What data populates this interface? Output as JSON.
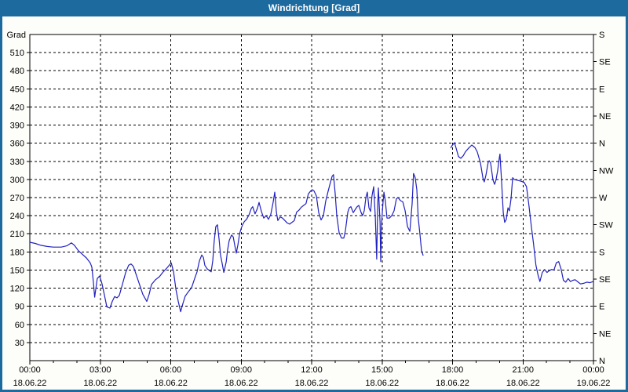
{
  "window": {
    "title": "Windrichtung [Grad]"
  },
  "colors": {
    "titlebar_bg": "#1c6a9e",
    "titlebar_text": "#ffffff",
    "outer_border": "#1c6a9e",
    "page_bg": "#fdfdfa",
    "plot_bg": "#ffffff",
    "grid": "#000000",
    "axis": "#000000",
    "label_text": "#000000",
    "line": "#2020c0"
  },
  "chart_data": {
    "type": "line",
    "title": "Windrichtung [Grad]",
    "ylabel_left": "Grad",
    "grid": "dashed",
    "legend_position": "none",
    "ylim": [
      0,
      540
    ],
    "xlim_hours": [
      0,
      24
    ],
    "y_left_tick_step": 30,
    "y_left_ticks": [
      30,
      60,
      90,
      120,
      150,
      180,
      210,
      240,
      270,
      300,
      330,
      360,
      390,
      420,
      450,
      480,
      510
    ],
    "y_right_ticks": [
      {
        "deg": 540,
        "label": "S"
      },
      {
        "deg": 495,
        "label": "SE"
      },
      {
        "deg": 450,
        "label": "E"
      },
      {
        "deg": 405,
        "label": "NE"
      },
      {
        "deg": 360,
        "label": "N"
      },
      {
        "deg": 315,
        "label": "NW"
      },
      {
        "deg": 270,
        "label": "W"
      },
      {
        "deg": 225,
        "label": "SW"
      },
      {
        "deg": 180,
        "label": "S"
      },
      {
        "deg": 135,
        "label": "SE"
      },
      {
        "deg": 90,
        "label": "E"
      },
      {
        "deg": 45,
        "label": "NE"
      },
      {
        "deg": 0,
        "label": "N"
      }
    ],
    "x_major_ticks": [
      {
        "hour": 0,
        "time": "00:00",
        "date": "18.06.22"
      },
      {
        "hour": 3,
        "time": "03:00",
        "date": "18.06.22"
      },
      {
        "hour": 6,
        "time": "06:00",
        "date": "18.06.22"
      },
      {
        "hour": 9,
        "time": "09:00",
        "date": "18.06.22"
      },
      {
        "hour": 12,
        "time": "12:00",
        "date": "18.06.22"
      },
      {
        "hour": 15,
        "time": "15:00",
        "date": "18.06.22"
      },
      {
        "hour": 18,
        "time": "18:00",
        "date": "18.06.22"
      },
      {
        "hour": 21,
        "time": "21:00",
        "date": "18.06.22"
      },
      {
        "hour": 24,
        "time": "00:00",
        "date": "19.06.22"
      }
    ],
    "x_minor_tick_interval_hours": 1,
    "series": [
      {
        "name": "Windrichtung",
        "unit": "Grad",
        "color": "#2020c0",
        "segments": [
          [
            [
              0.0,
              196
            ],
            [
              0.23,
              194
            ],
            [
              0.47,
              191
            ],
            [
              0.74,
              189
            ],
            [
              1.0,
              188
            ],
            [
              1.34,
              188
            ],
            [
              1.57,
              190
            ],
            [
              1.77,
              195
            ],
            [
              1.9,
              191
            ],
            [
              2.07,
              182
            ],
            [
              2.24,
              176
            ],
            [
              2.41,
              170
            ],
            [
              2.57,
              162
            ],
            [
              2.64,
              155
            ],
            [
              2.71,
              128
            ],
            [
              2.76,
              105
            ],
            [
              2.87,
              136
            ],
            [
              2.97,
              140
            ],
            [
              3.07,
              128
            ],
            [
              3.18,
              108
            ],
            [
              3.28,
              89
            ],
            [
              3.41,
              87
            ],
            [
              3.51,
              98
            ],
            [
              3.61,
              106
            ],
            [
              3.71,
              104
            ],
            [
              3.81,
              108
            ],
            [
              3.94,
              126
            ],
            [
              4.08,
              146
            ],
            [
              4.21,
              158
            ],
            [
              4.31,
              160
            ],
            [
              4.41,
              156
            ],
            [
              4.55,
              140
            ],
            [
              4.68,
              125
            ],
            [
              4.81,
              110
            ],
            [
              4.98,
              98
            ],
            [
              5.08,
              110
            ],
            [
              5.18,
              126
            ],
            [
              5.35,
              134
            ],
            [
              5.52,
              139
            ],
            [
              5.68,
              147
            ],
            [
              5.85,
              154
            ],
            [
              6.02,
              162
            ],
            [
              6.12,
              147
            ],
            [
              6.22,
              118
            ],
            [
              6.32,
              98
            ],
            [
              6.42,
              81
            ],
            [
              6.52,
              95
            ],
            [
              6.62,
              107
            ],
            [
              6.75,
              114
            ],
            [
              6.89,
              121
            ],
            [
              7.02,
              136
            ],
            [
              7.12,
              147
            ],
            [
              7.22,
              165
            ],
            [
              7.32,
              175
            ],
            [
              7.39,
              171
            ],
            [
              7.45,
              158
            ],
            [
              7.55,
              152
            ],
            [
              7.65,
              149
            ],
            [
              7.72,
              147
            ],
            [
              7.79,
              166
            ],
            [
              7.85,
              197
            ],
            [
              7.92,
              222
            ],
            [
              7.99,
              225
            ],
            [
              8.06,
              201
            ],
            [
              8.12,
              175
            ],
            [
              8.19,
              161
            ],
            [
              8.26,
              146
            ],
            [
              8.36,
              163
            ],
            [
              8.42,
              183
            ],
            [
              8.49,
              199
            ],
            [
              8.59,
              208
            ],
            [
              8.66,
              205
            ],
            [
              8.73,
              190
            ],
            [
              8.79,
              178
            ],
            [
              8.86,
              192
            ],
            [
              8.93,
              210
            ],
            [
              8.99,
              218
            ],
            [
              9.06,
              225
            ],
            [
              9.13,
              230
            ],
            [
              9.23,
              234
            ],
            [
              9.33,
              241
            ],
            [
              9.43,
              252
            ],
            [
              9.49,
              255
            ],
            [
              9.59,
              243
            ],
            [
              9.69,
              252
            ],
            [
              9.76,
              262
            ],
            [
              9.86,
              247
            ],
            [
              9.96,
              236
            ],
            [
              10.06,
              240
            ],
            [
              10.16,
              234
            ],
            [
              10.26,
              242
            ],
            [
              10.36,
              262
            ],
            [
              10.43,
              279
            ],
            [
              10.5,
              246
            ],
            [
              10.56,
              232
            ],
            [
              10.66,
              238
            ],
            [
              10.76,
              236
            ],
            [
              10.86,
              232
            ],
            [
              10.96,
              228
            ],
            [
              11.06,
              226
            ],
            [
              11.16,
              229
            ],
            [
              11.26,
              232
            ],
            [
              11.36,
              246
            ],
            [
              11.46,
              249
            ],
            [
              11.56,
              254
            ],
            [
              11.66,
              257
            ],
            [
              11.76,
              260
            ],
            [
              11.86,
              276
            ],
            [
              11.96,
              281
            ],
            [
              12.03,
              283
            ],
            [
              12.1,
              281
            ],
            [
              12.2,
              273
            ],
            [
              12.3,
              245
            ],
            [
              12.4,
              233
            ],
            [
              12.5,
              240
            ],
            [
              12.6,
              264
            ],
            [
              12.7,
              280
            ],
            [
              12.8,
              295
            ],
            [
              12.87,
              305
            ],
            [
              12.93,
              308
            ],
            [
              13.0,
              278
            ],
            [
              13.07,
              240
            ],
            [
              13.17,
              212
            ],
            [
              13.27,
              203
            ],
            [
              13.37,
              203
            ],
            [
              13.44,
              216
            ],
            [
              13.54,
              246
            ],
            [
              13.6,
              253
            ],
            [
              13.67,
              255
            ],
            [
              13.77,
              245
            ],
            [
              13.87,
              251
            ],
            [
              13.94,
              255
            ],
            [
              14.01,
              257
            ],
            [
              14.11,
              245
            ],
            [
              14.17,
              240
            ],
            [
              14.24,
              248
            ],
            [
              14.31,
              270
            ],
            [
              14.37,
              279
            ],
            [
              14.44,
              253
            ],
            [
              14.51,
              247
            ],
            [
              14.57,
              273
            ],
            [
              14.64,
              288
            ],
            [
              14.71,
              238
            ],
            [
              14.77,
              168
            ],
            [
              14.81,
              255
            ],
            [
              14.84,
              286
            ],
            [
              14.91,
              230
            ],
            [
              14.94,
              164
            ],
            [
              14.98,
              229
            ],
            [
              15.04,
              262
            ],
            [
              15.08,
              279
            ],
            [
              15.14,
              264
            ],
            [
              15.21,
              236
            ],
            [
              15.31,
              236
            ],
            [
              15.41,
              240
            ],
            [
              15.51,
              248
            ],
            [
              15.61,
              268
            ],
            [
              15.68,
              270
            ],
            [
              15.78,
              265
            ],
            [
              15.88,
              263
            ],
            [
              15.98,
              248
            ],
            [
              16.08,
              222
            ],
            [
              16.18,
              214
            ],
            [
              16.28,
              260
            ],
            [
              16.34,
              310
            ],
            [
              16.41,
              303
            ],
            [
              16.48,
              283
            ],
            [
              16.54,
              236
            ],
            [
              16.61,
              210
            ],
            [
              16.68,
              182
            ],
            [
              16.75,
              174
            ]
          ],
          [
            [
              17.92,
              352
            ],
            [
              17.98,
              356
            ],
            [
              18.08,
              361
            ],
            [
              18.15,
              352
            ],
            [
              18.25,
              338
            ],
            [
              18.35,
              335
            ],
            [
              18.45,
              339
            ],
            [
              18.55,
              346
            ],
            [
              18.69,
              352
            ],
            [
              18.82,
              357
            ],
            [
              18.95,
              353
            ],
            [
              19.05,
              346
            ],
            [
              19.19,
              327
            ],
            [
              19.29,
              303
            ],
            [
              19.35,
              296
            ],
            [
              19.42,
              307
            ],
            [
              19.52,
              329
            ],
            [
              19.56,
              331
            ],
            [
              19.62,
              327
            ],
            [
              19.72,
              299
            ],
            [
              19.79,
              292
            ],
            [
              19.85,
              299
            ],
            [
              19.92,
              314
            ],
            [
              19.99,
              335
            ],
            [
              20.02,
              342
            ],
            [
              20.09,
              296
            ],
            [
              20.16,
              245
            ],
            [
              20.22,
              229
            ],
            [
              20.29,
              234
            ],
            [
              20.36,
              253
            ],
            [
              20.42,
              248
            ],
            [
              20.49,
              268
            ],
            [
              20.56,
              303
            ],
            [
              20.62,
              300
            ],
            [
              20.72,
              299
            ],
            [
              20.82,
              298
            ],
            [
              20.92,
              297
            ],
            [
              21.05,
              295
            ],
            [
              21.15,
              288
            ],
            [
              21.25,
              258
            ],
            [
              21.35,
              224
            ],
            [
              21.45,
              193
            ],
            [
              21.55,
              158
            ],
            [
              21.65,
              140
            ],
            [
              21.72,
              131
            ],
            [
              21.82,
              146
            ],
            [
              21.92,
              151
            ],
            [
              22.02,
              146
            ],
            [
              22.12,
              149
            ],
            [
              22.22,
              151
            ],
            [
              22.32,
              150
            ],
            [
              22.42,
              162
            ],
            [
              22.52,
              164
            ],
            [
              22.62,
              152
            ],
            [
              22.72,
              133
            ],
            [
              22.82,
              130
            ],
            [
              22.92,
              136
            ],
            [
              23.02,
              131
            ],
            [
              23.12,
              133
            ],
            [
              23.22,
              134
            ],
            [
              23.35,
              130
            ],
            [
              23.45,
              127
            ],
            [
              23.58,
              128
            ],
            [
              23.72,
              130
            ],
            [
              23.85,
              129
            ],
            [
              23.99,
              131
            ]
          ]
        ]
      }
    ]
  }
}
